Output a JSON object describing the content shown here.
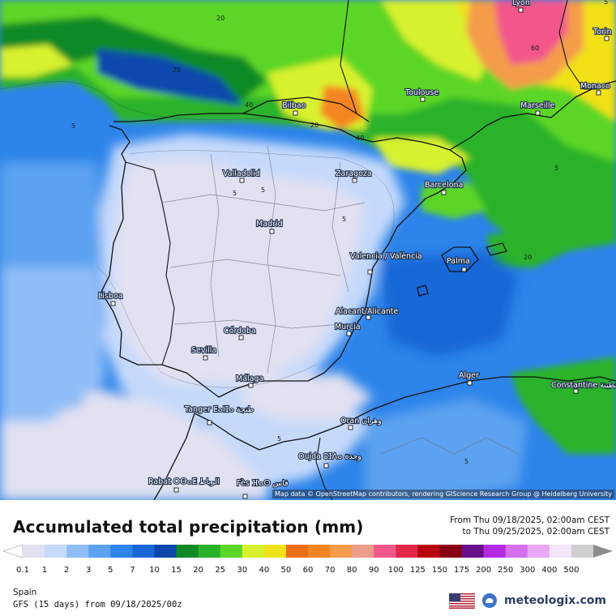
{
  "title": "Accumulated total precipitation (mm)",
  "period": {
    "from": "From Thu 09/18/2025, 02:00am CEST",
    "to": "to Thu 09/25/2025, 02:00am CEST"
  },
  "attribution": "Map data © OpenStreetMap contributors, rendering GIScience Research Group @ Heidelberg University",
  "region": "Spain",
  "model_run": "GFS (15 days) from 09/18/2025/00z",
  "brand": "meteologix.com",
  "cities": [
    "Lyon",
    "Torin",
    "Monaco",
    "Toulouse",
    "Marseille",
    "Bilbao",
    "Valladolid",
    "Zaragoza",
    "Barcelona",
    "Madrid",
    "Valencia / València",
    "Palma",
    "Lisboa",
    "Alacant/Alicante",
    "Murcia",
    "Córdoba",
    "Sevilla",
    "Málaga",
    "Alger",
    "Constantine قسنطينة",
    "Tanger ⵟⴰⵏⵊⴰ طنجة",
    "Oran وهران",
    "Oujda ⵓⵊⴷⴰ وجدة",
    "Rabat ⵔⴱⴰⵟ الرباط",
    "Fès ⴼⴰⵙ فاس"
  ],
  "contour_labels": [
    "20",
    "20",
    "40",
    "20",
    "40",
    "60",
    "5",
    "5",
    "5",
    "5",
    "5",
    "5",
    "20",
    "5",
    "5"
  ],
  "legend": {
    "values": [
      "0.1",
      "1",
      "2",
      "3",
      "5",
      "7",
      "10",
      "15",
      "20",
      "25",
      "30",
      "40",
      "50",
      "60",
      "70",
      "80",
      "90",
      "100",
      "125",
      "150",
      "175",
      "200",
      "250",
      "300",
      "400",
      "500"
    ],
    "colors": [
      "#e1e1f1",
      "#c5d9fb",
      "#8fbdf7",
      "#5ba2f0",
      "#2d84ea",
      "#1967d6",
      "#0d49ac",
      "#0f8a27",
      "#2ab22b",
      "#5cd628",
      "#d8f12e",
      "#f1e119",
      "#ec6f13",
      "#f48522",
      "#f49c4a",
      "#ef9c8a",
      "#f2578a",
      "#e3264a",
      "#b7040e",
      "#8a0013",
      "#6a0f8c",
      "#b42be3",
      "#d66ef0",
      "#e8a8f6",
      "#f2e6f8",
      "#cfcfcf"
    ]
  }
}
